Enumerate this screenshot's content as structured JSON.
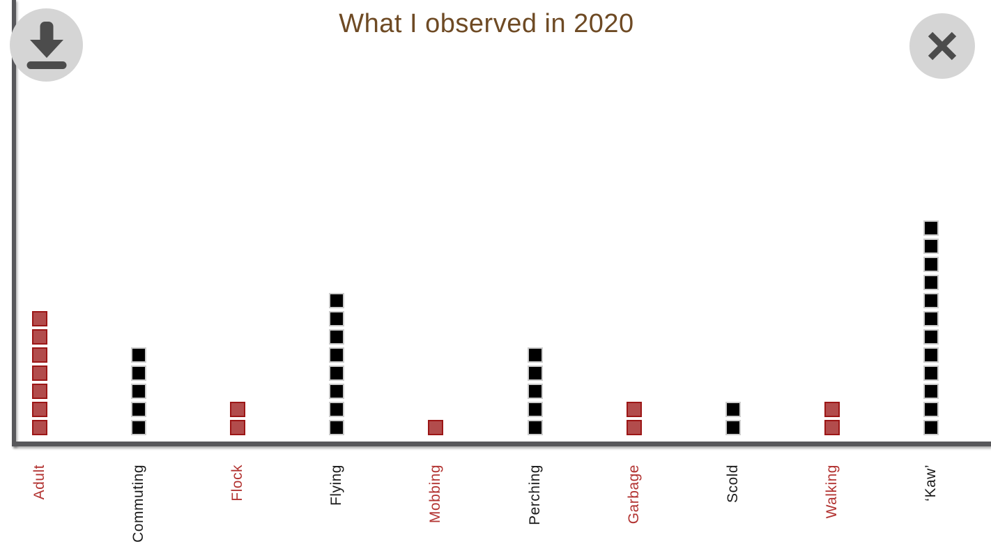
{
  "overlay": {
    "title": "What I observed in 2020",
    "buttons": {
      "download": {
        "icon": "download-icon"
      },
      "close": {
        "icon": "close-icon"
      }
    }
  },
  "chart_data": {
    "type": "bar",
    "subtype": "unit-square pictogram (each stacked square = 1 observation)",
    "title": "What I observed in 2020",
    "categories": [
      "Adult",
      "Commuting",
      "Flock",
      "Flying",
      "Mobbing",
      "Perching",
      "Garbage",
      "Scold",
      "Walking",
      "‘Kaw’"
    ],
    "values": [
      7,
      5,
      2,
      8,
      1,
      5,
      2,
      2,
      2,
      12
    ],
    "bar_color_names": [
      "red",
      "black",
      "red",
      "black",
      "red",
      "black",
      "red",
      "black",
      "red",
      "black"
    ],
    "xlabel": "",
    "ylabel": "",
    "ylim": [
      0,
      13
    ],
    "grid": false,
    "legend": false,
    "tick_label_rotation_deg": 90
  },
  "colors": {
    "red_square_fill": "#b24c4c",
    "red_square_border": "#9c1616",
    "black_square_fill": "#000000",
    "black_square_border": "#cccccc",
    "red_tick_label": "#b23331",
    "black_tick_label": "#1b1b1b",
    "title_text": "#6e4a24",
    "axis_line": "#58585b",
    "button_circle_bg": "#d5d5d5",
    "button_glyph": "#4c4c4c",
    "background": "#ffffff"
  }
}
